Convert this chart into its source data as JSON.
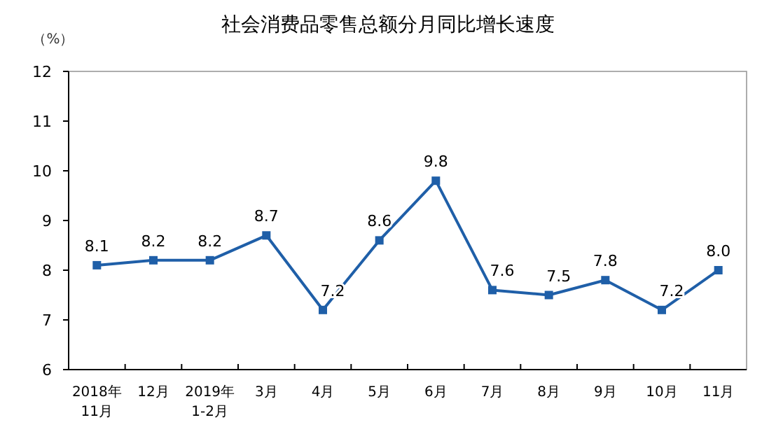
{
  "chart_data": {
    "type": "line",
    "title": "社会消费品零售总额分月同比增长速度",
    "ylabel": "（%）",
    "categories": [
      "2018年\n11月",
      "12月",
      "2019年\n1-2月",
      "3月",
      "4月",
      "5月",
      "6月",
      "7月",
      "8月",
      "9月",
      "10月",
      "11月"
    ],
    "series": [
      {
        "color": "#1f5fa8",
        "values": [
          8.1,
          8.2,
          8.2,
          8.7,
          7.2,
          8.6,
          9.8,
          7.6,
          7.5,
          7.8,
          7.2,
          8.0
        ],
        "value_labels": [
          "8.1",
          "8.2",
          "8.2",
          "8.7",
          "7.2",
          "8.6",
          "9.8",
          "7.6",
          "7.5",
          "7.8",
          "7.2",
          "8.0"
        ]
      }
    ],
    "ylim": [
      6,
      12
    ],
    "yticks": [
      6,
      7,
      8,
      9,
      10,
      11,
      12
    ],
    "marker": "square",
    "grid": false
  }
}
